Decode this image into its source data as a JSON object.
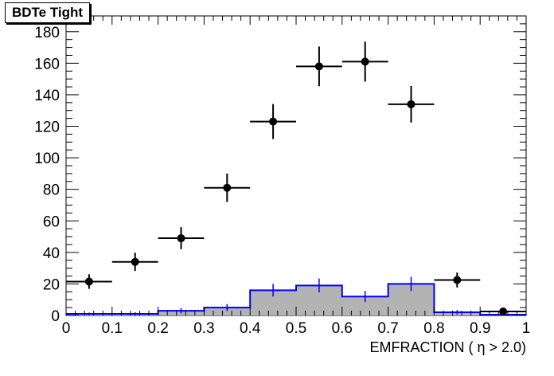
{
  "chart_data": {
    "type": "bar",
    "title": "BDTe Tight",
    "xlabel": "EMFRACTION ( η > 2.0)",
    "ylabel": "",
    "xlim": [
      0,
      1
    ],
    "ylim": [
      0,
      190
    ],
    "x_ticks": [
      "0",
      "0.1",
      "0.2",
      "0.3",
      "0.4",
      "0.5",
      "0.6",
      "0.7",
      "0.8",
      "0.9",
      "1"
    ],
    "y_ticks": [
      "0",
      "20",
      "40",
      "60",
      "80",
      "100",
      "120",
      "140",
      "160",
      "180"
    ],
    "bin_edges": [
      0,
      0.1,
      0.2,
      0.3,
      0.4,
      0.5,
      0.6,
      0.7,
      0.8,
      0.9,
      1.0
    ],
    "series": [
      {
        "kind": "histogram",
        "color": "#0000ff",
        "fill": "#b3b3b3",
        "values": [
          1,
          1,
          3,
          5,
          16,
          19,
          12,
          20,
          2,
          0.5
        ],
        "errors": [
          0.8,
          1.0,
          1.7,
          2.2,
          4.0,
          4.4,
          3.5,
          4.5,
          1.4,
          0.7
        ]
      },
      {
        "kind": "points",
        "color": "#000000",
        "values": [
          21.5,
          34,
          49,
          81,
          123,
          158,
          161,
          134,
          22.5,
          2.5
        ],
        "errors": [
          4.6,
          5.8,
          7.0,
          9.0,
          11.1,
          12.6,
          12.7,
          11.6,
          4.7,
          1.6
        ]
      }
    ]
  }
}
